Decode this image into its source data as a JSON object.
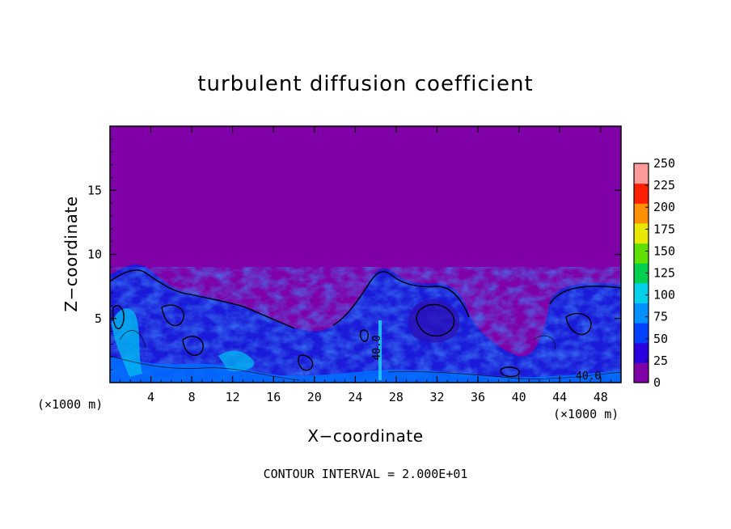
{
  "chart_data": {
    "type": "heatmap",
    "title": "turbulent diffusion coefficient",
    "xlabel": "X−coordinate",
    "ylabel": "Z−coordinate",
    "x_unit_label": "(×1000 m)",
    "z_unit_label": "(×1000 m)",
    "xlim": [
      0,
      50
    ],
    "ylim": [
      0,
      20
    ],
    "xticks": [
      4,
      8,
      12,
      16,
      20,
      24,
      28,
      32,
      36,
      40,
      44,
      48
    ],
    "yticks": [
      5,
      10,
      15
    ],
    "colorbar": {
      "range": [
        0,
        250
      ],
      "ticks": [
        0,
        25,
        50,
        75,
        100,
        125,
        150,
        175,
        200,
        225,
        250
      ],
      "colors": [
        "#8000a8",
        "#2a00e0",
        "#0040ff",
        "#0090ff",
        "#00d0e8",
        "#00d050",
        "#60e000",
        "#e8e800",
        "#ff9000",
        "#ff2000",
        "#ff9a9a"
      ]
    },
    "contour_labels": [
      "40.0",
      "40.0",
      "40.0"
    ],
    "footer": "CONTOUR INTERVAL = 2.000E+01",
    "background_color": "#8000a8"
  }
}
